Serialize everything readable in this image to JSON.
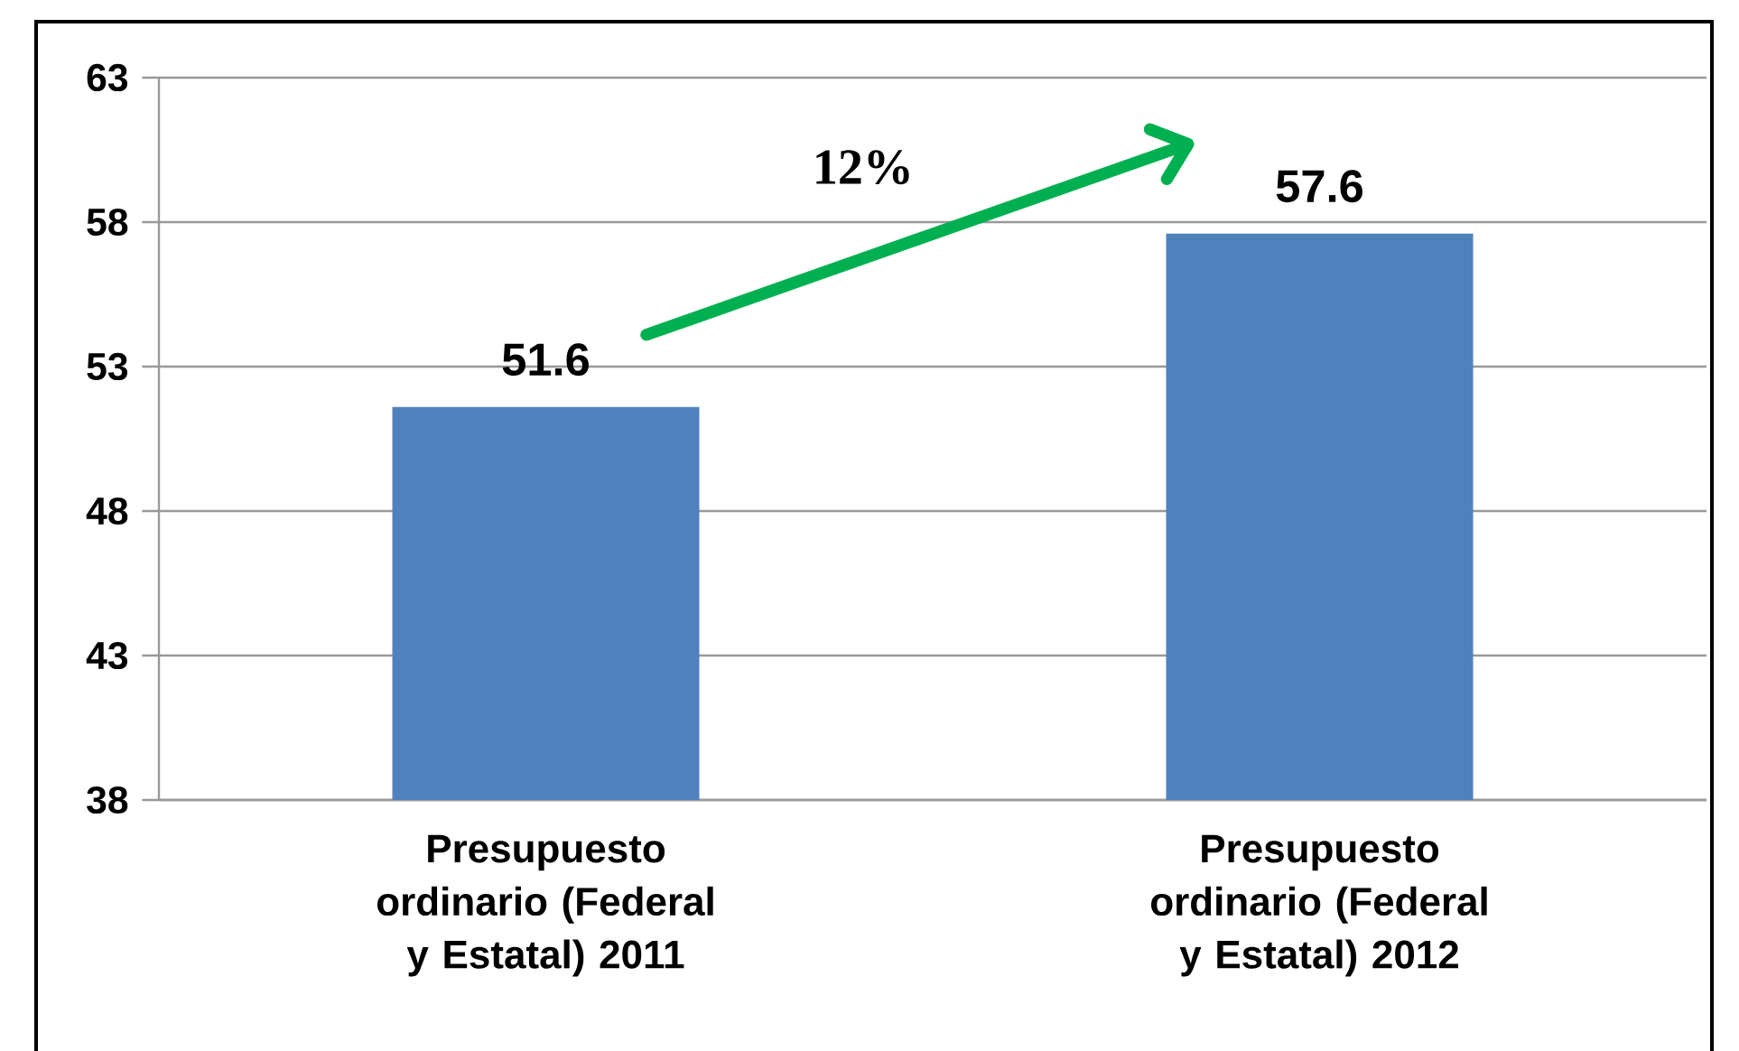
{
  "chart_data": {
    "type": "bar",
    "categories": [
      "Presupuesto ordinario (Federal  y Estatal) 2011",
      "Presupuesto ordinario (Federal  y Estatal) 2012"
    ],
    "values": [
      51.6,
      57.6
    ],
    "color": "#4f81bd",
    "data_labels": true,
    "ylim": [
      38,
      63
    ],
    "yticks": [
      38,
      43,
      48,
      53,
      58,
      63
    ],
    "grid": "y",
    "annotations": [
      "12%"
    ]
  }
}
